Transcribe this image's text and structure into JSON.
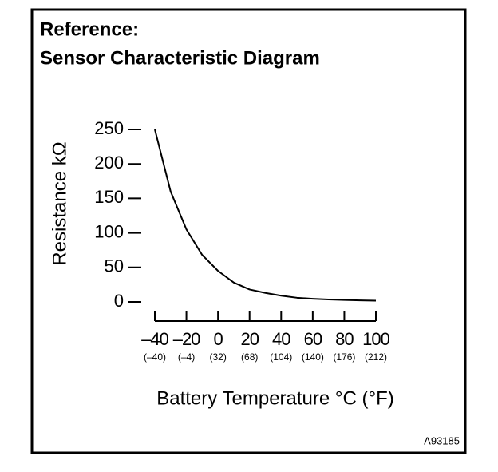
{
  "chart_data": {
    "type": "line",
    "title": "Reference:",
    "subtitle": "Sensor Characteristic Diagram",
    "x_label": "Battery Temperature °C (°F)",
    "y_label": "Resistance kΩ",
    "figure_id": "A93185",
    "x": [
      -40,
      -30,
      -20,
      -10,
      0,
      10,
      20,
      30,
      40,
      50,
      60,
      70,
      80,
      90,
      100
    ],
    "series": [
      {
        "color": "#000000",
        "values": [
          250,
          160,
          105,
          68,
          45,
          28,
          18,
          13,
          9,
          6,
          4.5,
          3.5,
          2.8,
          2.2,
          1.8
        ]
      }
    ],
    "xlim": [
      -40,
      100
    ],
    "ylim": [
      0,
      250
    ],
    "xticks": [
      {
        "value": -40,
        "label": "–40"
      },
      {
        "value": -20,
        "label": "–20"
      },
      0,
      20,
      40,
      60,
      80,
      100
    ],
    "xtick_labels_f": [
      "(–40)",
      "(–4)",
      "(32)",
      "(68)",
      "(104)",
      "(140)",
      "(176)",
      "(212)"
    ],
    "yticks": [
      0,
      50,
      100,
      150,
      200,
      250
    ],
    "grid": false
  }
}
